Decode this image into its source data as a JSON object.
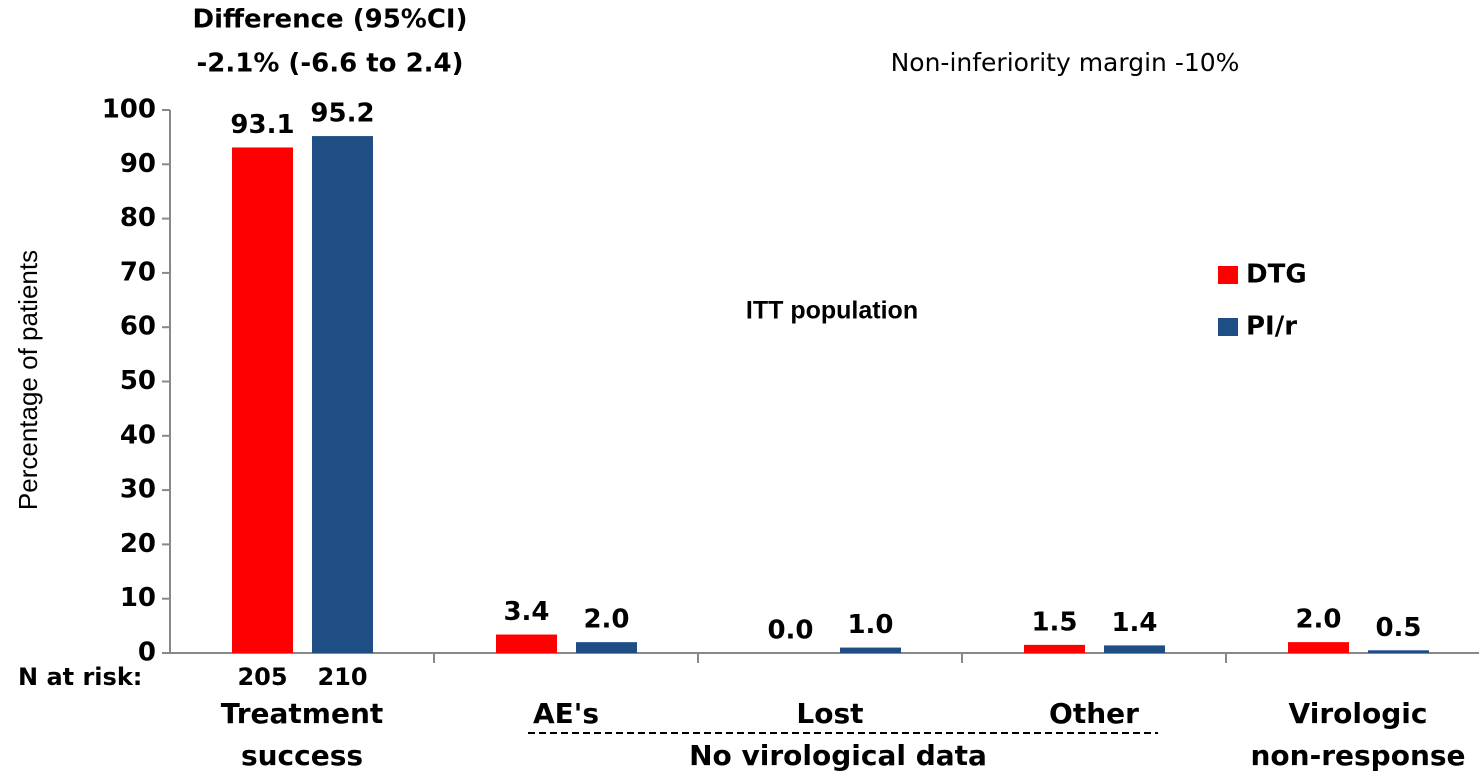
{
  "chart_data": {
    "type": "bar",
    "annotations": [
      "Difference (95%CI)",
      "-2.1% (-6.6 to 2.4)",
      "Non-inferiority margin -10%",
      "ITT population"
    ],
    "ylabel": "Percentage of patients",
    "categories": [
      [
        "Treatment",
        "success"
      ],
      [
        "AE's"
      ],
      [
        "Lost"
      ],
      [
        "Other"
      ],
      [
        "Virologic",
        "non-response"
      ]
    ],
    "group_label": "No virological data",
    "n_at_risk": {
      "label": "N at risk:",
      "values": [
        205,
        210
      ]
    },
    "series": [
      {
        "name": "DTG",
        "color": "#ff0000",
        "values": [
          93.1,
          3.4,
          0.0,
          1.5,
          2.0
        ],
        "value_labels": [
          "93.1",
          "3.4",
          "0.0",
          "1.5",
          "2.0"
        ]
      },
      {
        "name": "PI/r",
        "color": "#1f4e85",
        "values": [
          95.2,
          2.0,
          1.0,
          1.4,
          0.5
        ],
        "value_labels": [
          "95.2",
          "2.0",
          "1.0",
          "1.4",
          "0.5"
        ]
      }
    ],
    "ylim": [
      0,
      100
    ],
    "yticks": [
      0,
      10,
      20,
      30,
      40,
      50,
      60,
      70,
      80,
      90,
      100
    ],
    "legend": "right"
  }
}
